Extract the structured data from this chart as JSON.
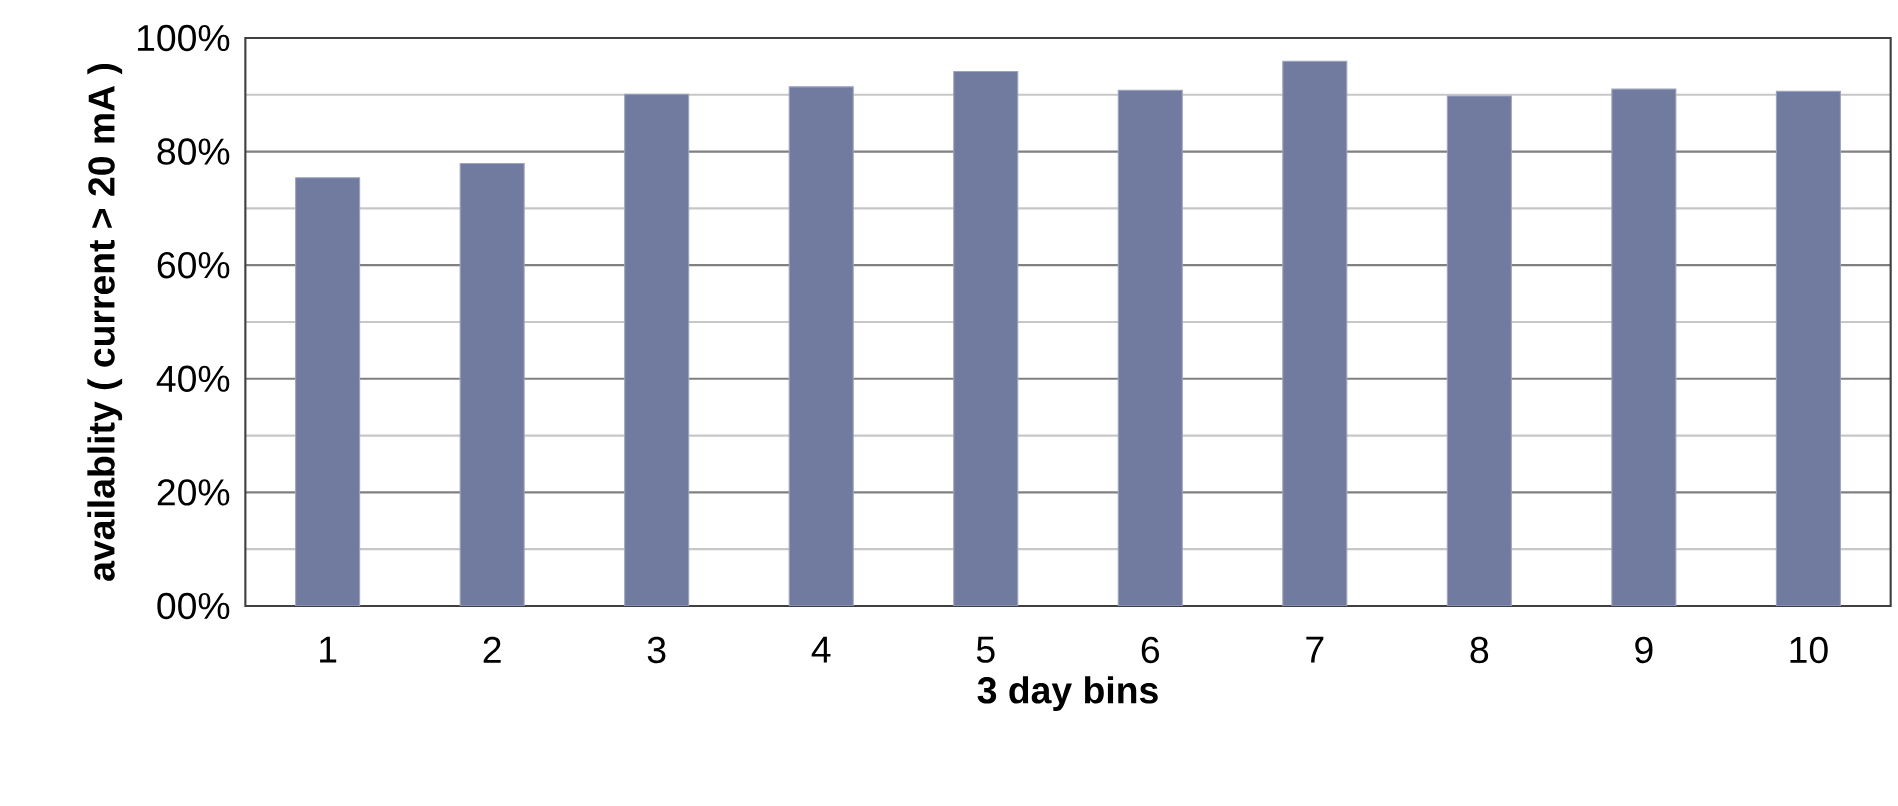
{
  "chart_data": {
    "type": "bar",
    "xlabel": "3 day bins",
    "ylabel": "availablity ( current > 20 mA )",
    "categories": [
      "1",
      "2",
      "3",
      "4",
      "5",
      "6",
      "7",
      "8",
      "9",
      "10"
    ],
    "values": [
      75.4,
      77.9,
      90.1,
      91.4,
      94.1,
      90.8,
      95.9,
      89.8,
      91.0,
      90.6
    ],
    "color": "#717ba0",
    "ylim": [
      0,
      100
    ],
    "yticks": [
      {
        "value": 0,
        "label": "00%"
      },
      {
        "value": 20,
        "label": "20%"
      },
      {
        "value": 40,
        "label": "40%"
      },
      {
        "value": 60,
        "label": "60%"
      },
      {
        "value": 80,
        "label": "80%"
      },
      {
        "value": 100,
        "label": "100%"
      }
    ],
    "grid": "y"
  }
}
